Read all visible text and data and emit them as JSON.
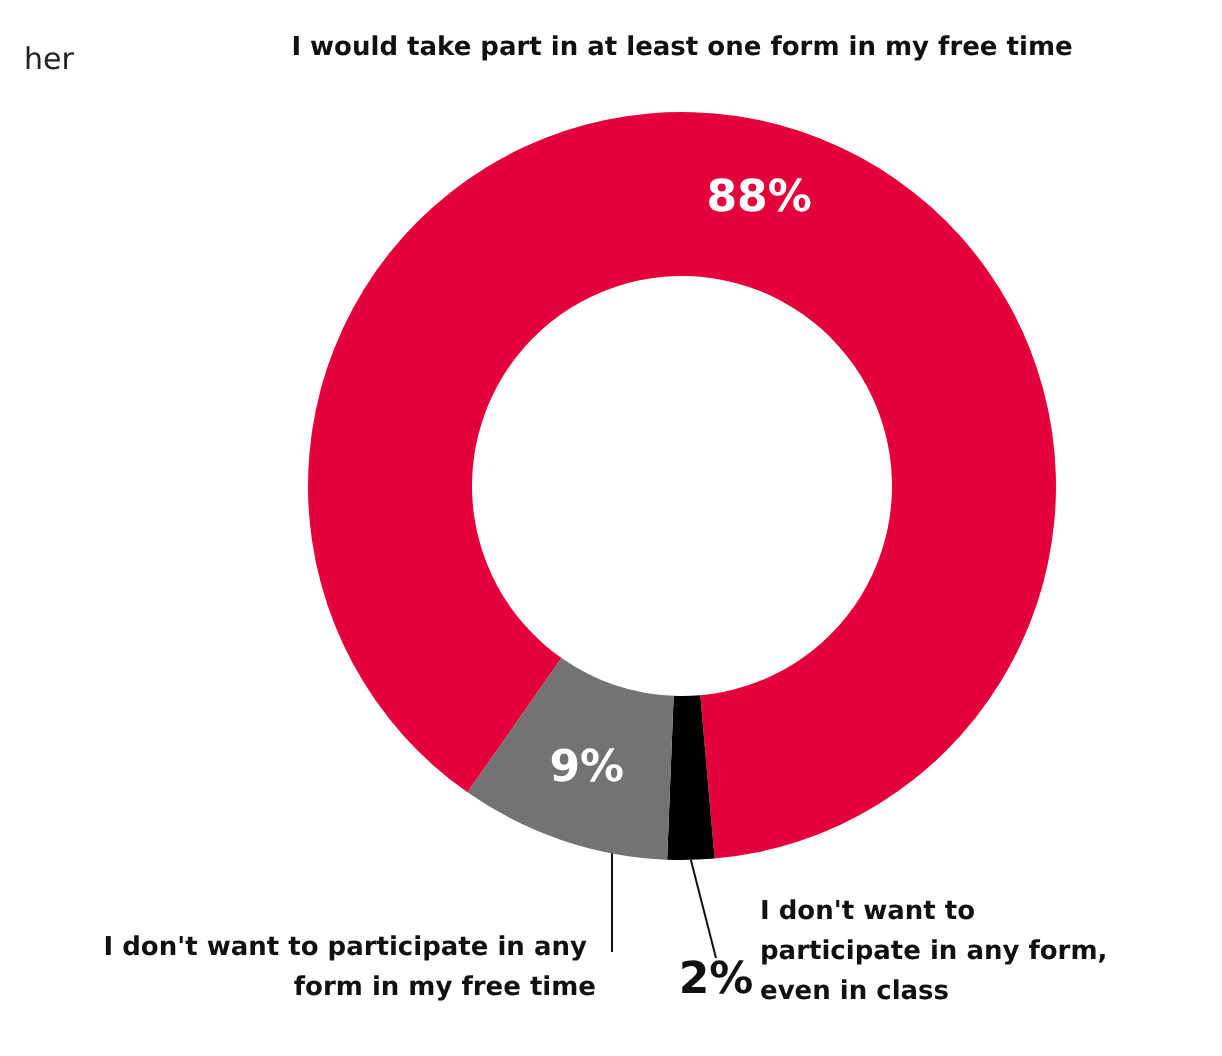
{
  "chart_data": {
    "type": "donut",
    "categories": [
      "I would take part in at least one form in my free time",
      "I don't want to participate in any form, even in class",
      "I don't want to participate in any form in my free time"
    ],
    "values": [
      88,
      2,
      9
    ],
    "colors": [
      "#e4003b",
      "#000000",
      "#737373"
    ],
    "value_labels": [
      "88%",
      "2%",
      "9%"
    ],
    "annotations": [
      "her"
    ]
  }
}
